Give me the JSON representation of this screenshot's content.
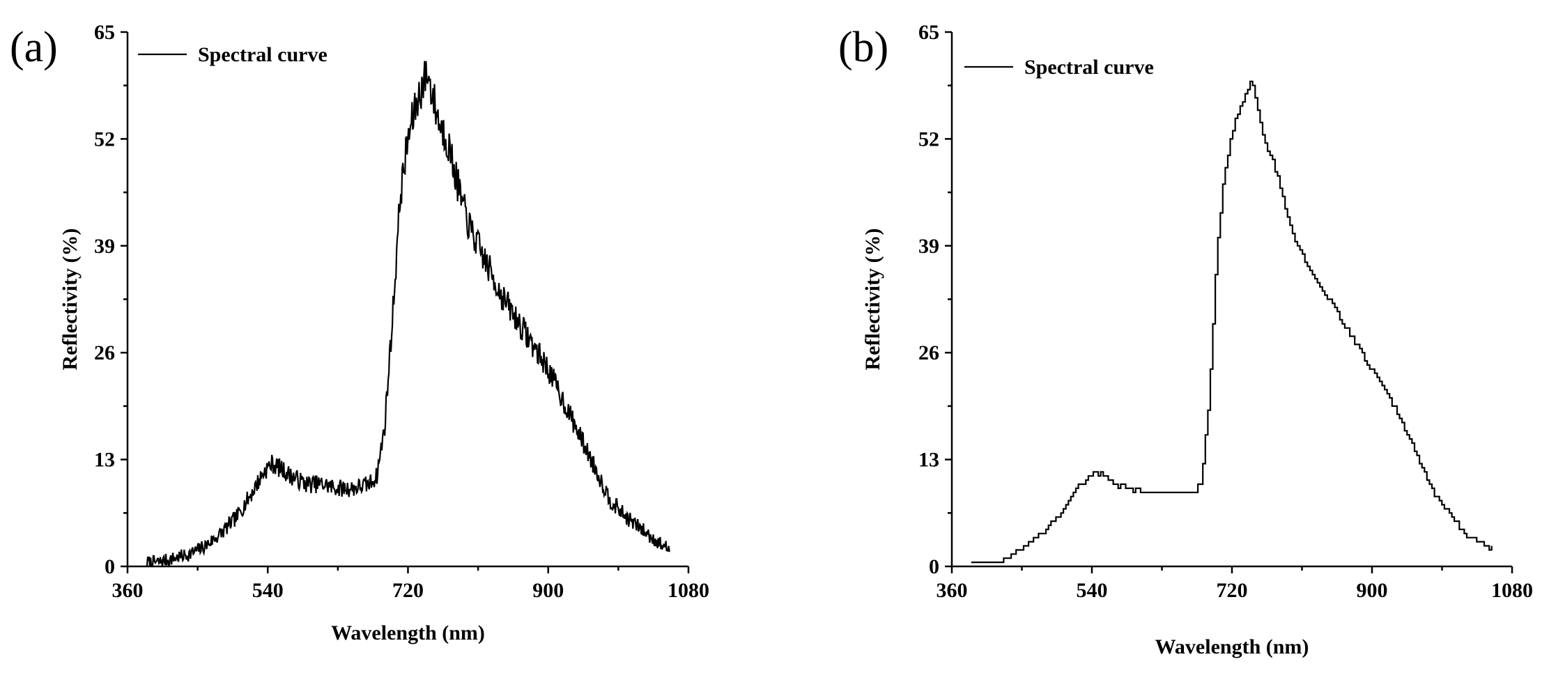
{
  "chart_data": [
    {
      "panel": "(a)",
      "type": "line",
      "style": "noisy",
      "legend": "Spectral curve",
      "xlabel": "Wavelength (nm)",
      "ylabel": "Reflectivity (%)",
      "xlim": [
        360,
        1080
      ],
      "ylim": [
        0,
        65
      ],
      "xticks": [
        360,
        540,
        720,
        900,
        1080
      ],
      "yticks": [
        0,
        13,
        26,
        39,
        52,
        65
      ],
      "series": [
        {
          "name": "Spectral curve",
          "x": [
            385,
            400,
            420,
            440,
            460,
            480,
            500,
            520,
            535,
            545,
            555,
            570,
            590,
            610,
            630,
            650,
            670,
            680,
            690,
            700,
            710,
            720,
            730,
            740,
            745,
            750,
            760,
            770,
            780,
            790,
            800,
            820,
            840,
            860,
            880,
            900,
            920,
            940,
            960,
            980,
            1000,
            1020,
            1040,
            1057
          ],
          "values": [
            0.5,
            0.5,
            1,
            1.5,
            2.5,
            4,
            6,
            9,
            11.5,
            12.5,
            12,
            11,
            10,
            10,
            9.5,
            9.5,
            10,
            11,
            17,
            30,
            45,
            52,
            56,
            59,
            60,
            58,
            54,
            52,
            48,
            44,
            41,
            37,
            33,
            30,
            27,
            24,
            20,
            16,
            12,
            8,
            6,
            4.5,
            3,
            2
          ]
        }
      ]
    },
    {
      "panel": "(b)",
      "type": "line",
      "style": "smooth-stepped",
      "legend": "Spectral curve",
      "xlabel": "Wavelength (nm)",
      "ylabel": "Reflectivity (%)",
      "xlim": [
        360,
        1080
      ],
      "ylim": [
        0,
        65
      ],
      "xticks": [
        360,
        540,
        720,
        900,
        1080
      ],
      "yticks": [
        0,
        13,
        26,
        39,
        52,
        65
      ],
      "series": [
        {
          "name": "Spectral curve",
          "x": [
            385,
            400,
            420,
            440,
            460,
            480,
            500,
            520,
            535,
            545,
            555,
            570,
            590,
            610,
            630,
            650,
            670,
            680,
            690,
            700,
            710,
            720,
            730,
            740,
            745,
            750,
            760,
            770,
            780,
            790,
            800,
            820,
            840,
            860,
            880,
            900,
            920,
            940,
            960,
            980,
            1000,
            1020,
            1040,
            1057
          ],
          "values": [
            0.5,
            0.5,
            0.5,
            1.5,
            3,
            4.5,
            6.5,
            9.5,
            11,
            11.5,
            11,
            10,
            9.5,
            9,
            9,
            9,
            9,
            10,
            20,
            38,
            48,
            53,
            56,
            58,
            59.5,
            57,
            52,
            50,
            47,
            43,
            40,
            36,
            33,
            30,
            27,
            24,
            21,
            17,
            13,
            9,
            6,
            4,
            3,
            2
          ]
        }
      ]
    }
  ]
}
